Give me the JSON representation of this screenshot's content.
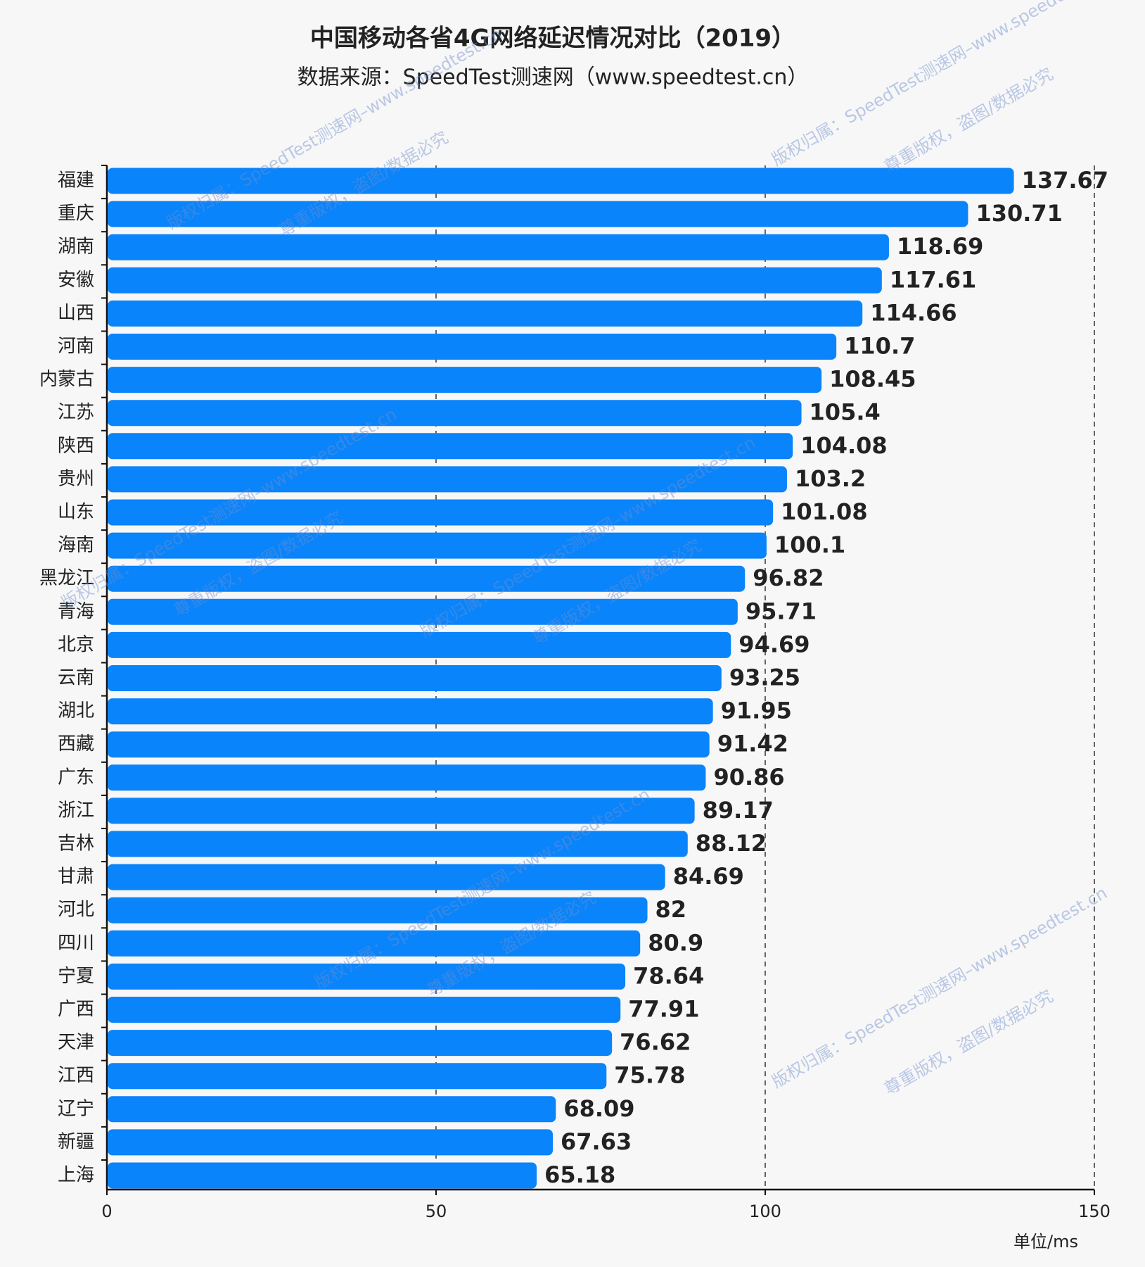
{
  "chart_data": {
    "type": "bar",
    "orientation": "horizontal",
    "title": "中国移动各省4G网络延迟情况对比（2019）",
    "subtitle": "数据来源：SpeedTest测速网（www.speedtest.cn）",
    "unit_label": "单位/ms",
    "categories": [
      "福建",
      "重庆",
      "湖南",
      "安徽",
      "山西",
      "河南",
      "内蒙古",
      "江苏",
      "陕西",
      "贵州",
      "山东",
      "海南",
      "黑龙江",
      "青海",
      "北京",
      "云南",
      "湖北",
      "西藏",
      "广东",
      "浙江",
      "吉林",
      "甘肃",
      "河北",
      "四川",
      "宁夏",
      "广西",
      "天津",
      "江西",
      "辽宁",
      "新疆",
      "上海"
    ],
    "values": [
      137.67,
      130.71,
      118.69,
      117.61,
      114.66,
      110.7,
      108.45,
      105.4,
      104.08,
      103.2,
      101.08,
      100.1,
      96.82,
      95.71,
      94.69,
      93.25,
      91.95,
      91.42,
      90.86,
      89.17,
      88.12,
      84.69,
      82,
      80.9,
      78.64,
      77.91,
      76.62,
      75.78,
      68.09,
      67.63,
      65.18
    ],
    "color": "#0a84fa",
    "xlim": [
      0,
      150
    ],
    "xticks": [
      0,
      50,
      100,
      150
    ],
    "grid": true,
    "watermarks": [
      "版权归属：SpeedTest测速网–www.speedtest.cn",
      "尊重版权，盗图/数据必究"
    ]
  }
}
